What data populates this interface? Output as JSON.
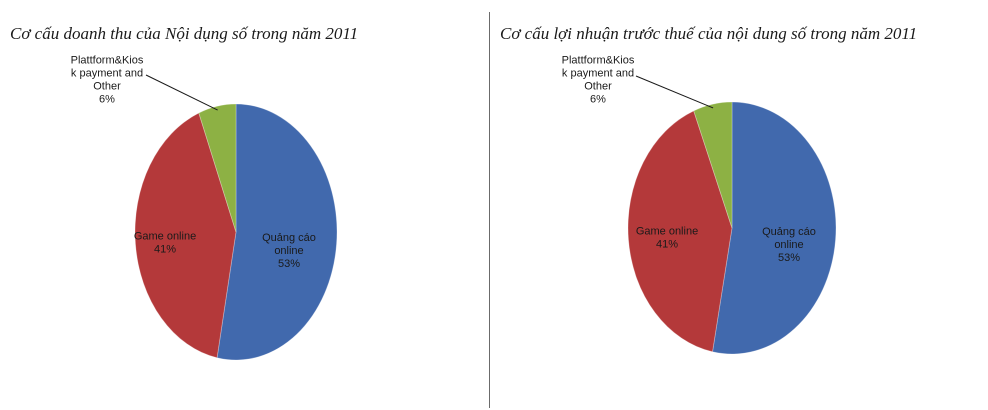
{
  "colors": {
    "blue": "#4169AD",
    "red": "#B4393A",
    "green": "#8DB144",
    "leader": "#1a1a1a"
  },
  "chart_data": [
    {
      "type": "pie",
      "title": "Cơ cấu doanh thu của Nội dụng số trong năm 2011",
      "slices": [
        {
          "label_lines": [
            "Quảng cáo",
            "online"
          ],
          "value": 53,
          "value_label": "53%",
          "color": "#4169AD"
        },
        {
          "label_lines": [
            "Game online"
          ],
          "value": 41,
          "value_label": "41%",
          "color": "#B4393A"
        },
        {
          "label_lines": [
            "Plattform&Kios",
            "k payment and",
            "Other"
          ],
          "value": 6,
          "value_label": "6%",
          "color": "#8DB144"
        }
      ],
      "start": "12 o'clock, clockwise"
    },
    {
      "type": "pie",
      "title": "Cơ cấu lợi nhuận trước thuế của nội dung số trong năm 2011",
      "slices": [
        {
          "label_lines": [
            "Quảng cáo",
            "online"
          ],
          "value": 53,
          "value_label": "53%",
          "color": "#4169AD"
        },
        {
          "label_lines": [
            "Game online"
          ],
          "value": 41,
          "value_label": "41%",
          "color": "#B4393A"
        },
        {
          "label_lines": [
            "Plattform&Kios",
            "k payment and",
            "Other"
          ],
          "value": 6,
          "value_label": "6%",
          "color": "#8DB144"
        }
      ],
      "start": "12 o'clock, clockwise"
    }
  ]
}
